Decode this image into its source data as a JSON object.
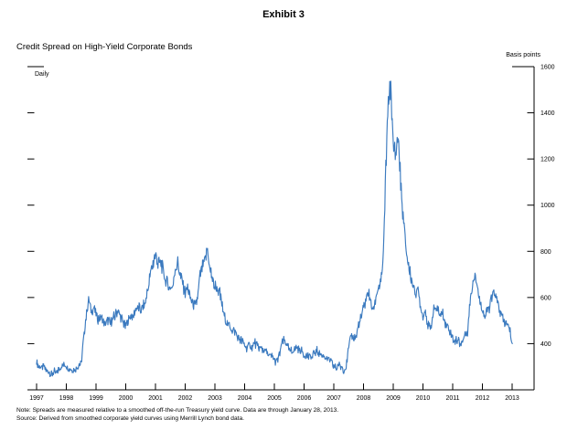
{
  "exhibit_title": "Exhibit 3",
  "chart": {
    "title": "Credit Spread on High-Yield Corporate Bonds",
    "frequency_label": "Daily",
    "unit_label": "Basis points",
    "line_color": "#3b7abf",
    "axis_color": "#000000",
    "x_ticks": [
      "1997",
      "1998",
      "1999",
      "2000",
      "2001",
      "2002",
      "2003",
      "2004",
      "2005",
      "2006",
      "2007",
      "2008",
      "2009",
      "2010",
      "2011",
      "2012",
      "2013"
    ],
    "y_ticks": [
      "400",
      "600",
      "800",
      "1000",
      "1200",
      "1400",
      "1600"
    ]
  },
  "notes": {
    "note_line": "Note: Spreads are measured relative to a smoothed off-the-run Treasury yield curve. Data are through January 28, 2013.",
    "source_line": "Source: Derived from smoothed corporate yield curves using Merrill Lynch bond data."
  },
  "chart_data": {
    "type": "line",
    "title": "Credit Spread on High-Yield Corporate Bonds",
    "xlabel": "",
    "ylabel": "Basis points",
    "frequency": "Daily",
    "legend": "none",
    "grid": false,
    "x_range_years": [
      1997,
      2013.08
    ],
    "ylim": [
      200,
      1600
    ],
    "y_tick_interval": 200,
    "data_through": "January 28, 2013",
    "series": [
      {
        "name": "High-yield corporate bond credit spread (basis points)",
        "x_start_year": 1997.0,
        "x_step_years": 0.0833,
        "sampling_of_source": "monthly approximation of daily series",
        "values": [
          320,
          300,
          295,
          300,
          285,
          275,
          265,
          280,
          275,
          290,
          305,
          310,
          305,
          295,
          290,
          285,
          295,
          310,
          315,
          420,
          520,
          595,
          545,
          555,
          530,
          505,
          520,
          490,
          480,
          500,
          490,
          510,
          525,
          540,
          515,
          495,
          475,
          500,
          525,
          510,
          545,
          560,
          550,
          555,
          580,
          640,
          700,
          745,
          790,
          745,
          755,
          720,
          670,
          655,
          645,
          640,
          730,
          750,
          700,
          655,
          620,
          645,
          600,
          575,
          555,
          600,
          700,
          730,
          765,
          805,
          720,
          680,
          650,
          640,
          615,
          560,
          510,
          485,
          470,
          460,
          450,
          430,
          420,
          410,
          390,
          380,
          395,
          385,
          405,
          390,
          380,
          375,
          370,
          360,
          350,
          345,
          330,
          318,
          350,
          400,
          415,
          398,
          372,
          365,
          372,
          382,
          370,
          365,
          355,
          350,
          345,
          340,
          355,
          368,
          360,
          350,
          345,
          335,
          330,
          320,
          300,
          292,
          310,
          298,
          285,
          300,
          380,
          445,
          420,
          430,
          480,
          510,
          555,
          590,
          620,
          570,
          550,
          600,
          650,
          660,
          780,
          1150,
          1450,
          1520,
          1250,
          1220,
          1310,
          1100,
          950,
          830,
          750,
          690,
          650,
          620,
          630,
          560,
          520,
          545,
          485,
          455,
          530,
          560,
          545,
          525,
          530,
          485,
          470,
          450,
          425,
          410,
          420,
          400,
          408,
          440,
          450,
          590,
          655,
          715,
          645,
          585,
          545,
          520,
          540,
          565,
          610,
          625,
          585,
          545,
          510,
          490,
          480,
          460,
          400
        ]
      }
    ]
  }
}
